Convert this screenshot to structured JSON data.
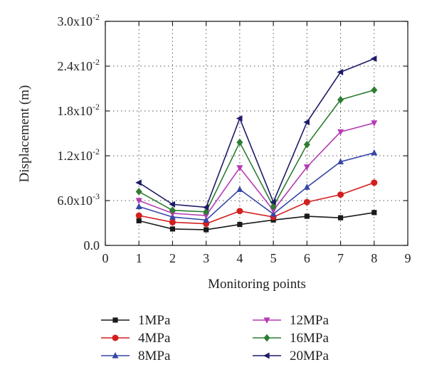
{
  "chart_data": {
    "type": "line",
    "title": "",
    "xlabel": "Monitoring points",
    "ylabel": "Displacement (m)",
    "xlim": [
      0,
      9
    ],
    "ylim": [
      0,
      0.03
    ],
    "grid": "dotted",
    "x_ticks": [
      0,
      1,
      2,
      3,
      4,
      5,
      6,
      7,
      8,
      9
    ],
    "x_tick_labels": [
      "0",
      "1",
      "2",
      "3",
      "4",
      "5",
      "6",
      "7",
      "8",
      "9"
    ],
    "y_ticks": [
      0,
      0.006,
      0.012,
      0.018,
      0.024,
      0.03
    ],
    "y_tick_labels": [
      {
        "mantissa": "0.0",
        "exponent": ""
      },
      {
        "mantissa": "6.0x10",
        "exponent": "-3"
      },
      {
        "mantissa": "1.2x10",
        "exponent": "-2"
      },
      {
        "mantissa": "1.8x10",
        "exponent": "-2"
      },
      {
        "mantissa": "2.4x10",
        "exponent": "-2"
      },
      {
        "mantissa": "3.0x10",
        "exponent": "-2"
      }
    ],
    "legend_position": "bottom",
    "x": [
      1,
      2,
      3,
      4,
      5,
      6,
      7,
      8
    ],
    "series": [
      {
        "name": "1MPa",
        "color": "#1a1a1a",
        "marker": "square",
        "values": [
          0.0033,
          0.0022,
          0.0021,
          0.0028,
          0.0034,
          0.0039,
          0.0037,
          0.0044
        ]
      },
      {
        "name": "4MPa",
        "color": "#d41f1f",
        "marker": "circle",
        "values": [
          0.004,
          0.0031,
          0.0029,
          0.0046,
          0.0038,
          0.0058,
          0.0068,
          0.0084
        ]
      },
      {
        "name": "8MPa",
        "color": "#3546a6",
        "marker": "triangle-up",
        "values": [
          0.0052,
          0.0038,
          0.0034,
          0.0075,
          0.0042,
          0.0078,
          0.0112,
          0.0124
        ]
      },
      {
        "name": "12MPa",
        "color": "#b43cb4",
        "marker": "triangle-down",
        "values": [
          0.006,
          0.0043,
          0.004,
          0.0104,
          0.0047,
          0.0105,
          0.0152,
          0.0164
        ]
      },
      {
        "name": "16MPa",
        "color": "#2e7d32",
        "marker": "diamond",
        "values": [
          0.0072,
          0.0047,
          0.0045,
          0.0138,
          0.0052,
          0.0135,
          0.0195,
          0.0208
        ]
      },
      {
        "name": "20MPa",
        "color": "#1d1b68",
        "marker": "triangle-left",
        "values": [
          0.0084,
          0.0055,
          0.0051,
          0.017,
          0.0058,
          0.0165,
          0.0232,
          0.025
        ]
      }
    ]
  }
}
